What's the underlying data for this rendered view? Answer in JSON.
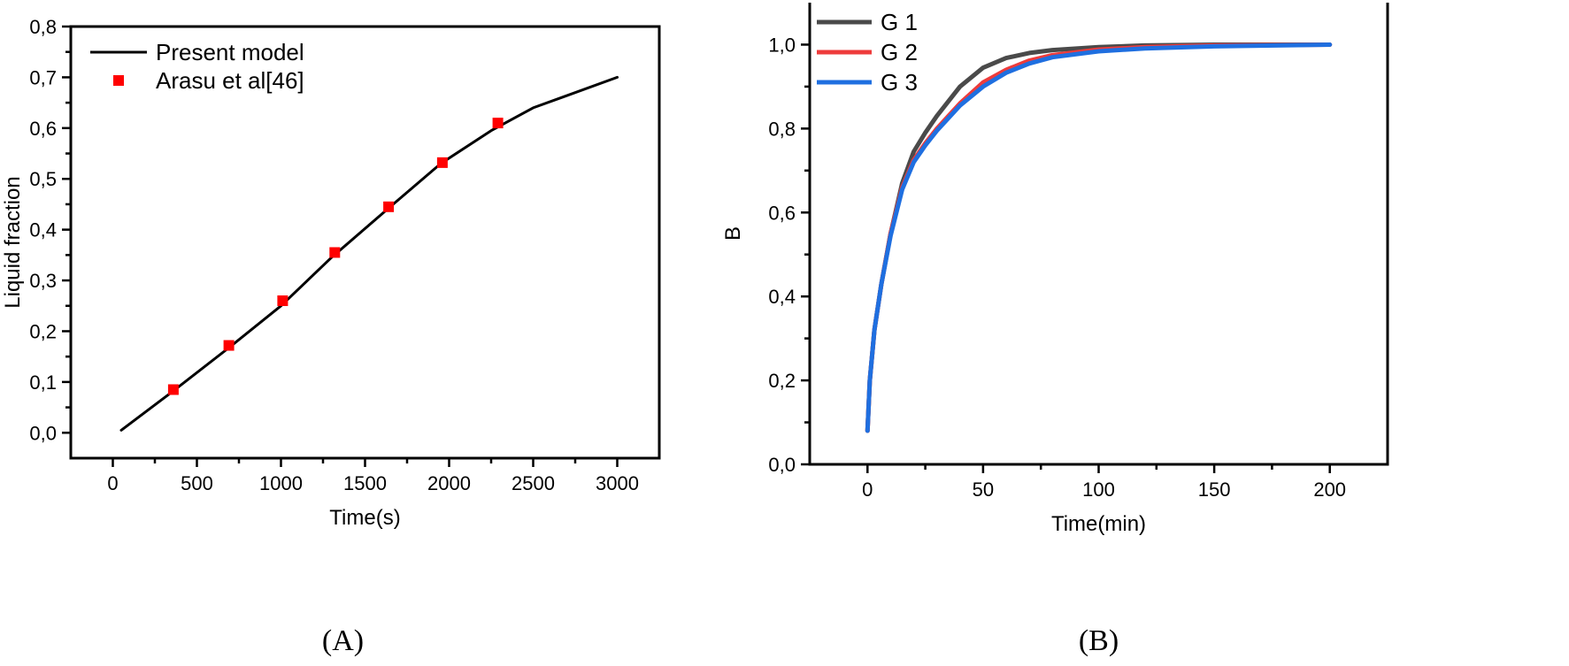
{
  "chart_data": [
    {
      "type": "line",
      "panel_label": "(A)",
      "xlabel": "Time(s)",
      "ylabel": "Liquid fraction",
      "xlim": [
        -250,
        3250
      ],
      "ylim": [
        -0.05,
        0.8
      ],
      "xticks": [
        0,
        500,
        1000,
        1500,
        2000,
        2500,
        3000
      ],
      "xtick_labels": [
        "0",
        "500",
        "1000",
        "1500",
        "2000",
        "2500",
        "3000"
      ],
      "yticks": [
        0.0,
        0.1,
        0.2,
        0.3,
        0.4,
        0.5,
        0.6,
        0.7,
        0.8
      ],
      "ytick_labels": [
        "0,0",
        "0,1",
        "0,2",
        "0,3",
        "0,4",
        "0,5",
        "0,6",
        "0,7",
        "0,8"
      ],
      "legend_position": "top-left",
      "series": [
        {
          "name": "Present model",
          "kind": "line",
          "color": "#000000",
          "x": [
            50,
            350,
            700,
            1000,
            1300,
            1650,
            1950,
            2250,
            2500,
            3000
          ],
          "y": [
            0.005,
            0.08,
            0.17,
            0.25,
            0.345,
            0.445,
            0.53,
            0.595,
            0.64,
            0.7
          ]
        },
        {
          "name": "Arasu et al[46]",
          "kind": "scatter",
          "color": "#ff0000",
          "x": [
            360,
            690,
            1010,
            1320,
            1640,
            1960,
            2290
          ],
          "y": [
            0.085,
            0.172,
            0.26,
            0.355,
            0.445,
            0.532,
            0.61
          ]
        }
      ]
    },
    {
      "type": "line",
      "panel_label": "(B)",
      "xlabel": "Time(min)",
      "ylabel": "B",
      "xlim": [
        -25,
        225
      ],
      "ylim": [
        0.0,
        1.1
      ],
      "xticks": [
        0,
        50,
        100,
        150,
        200
      ],
      "xtick_labels": [
        "0",
        "50",
        "100",
        "150",
        "200"
      ],
      "yticks": [
        0.0,
        0.2,
        0.4,
        0.6,
        0.8,
        1.0
      ],
      "ytick_labels": [
        "0,0",
        "0,2",
        "0,4",
        "0,6",
        "0,8",
        "1,0"
      ],
      "legend_position": "top-left",
      "series": [
        {
          "name": "G 1",
          "color": "#4a4a4a",
          "x": [
            0,
            1,
            3,
            6,
            10,
            15,
            20,
            25,
            30,
            40,
            50,
            60,
            70,
            80,
            100,
            120,
            150,
            200
          ],
          "y": [
            0.08,
            0.2,
            0.32,
            0.43,
            0.55,
            0.67,
            0.745,
            0.79,
            0.83,
            0.9,
            0.945,
            0.968,
            0.98,
            0.987,
            0.994,
            0.998,
            1.0,
            1.0
          ]
        },
        {
          "name": "G 2",
          "color": "#ee3b3b",
          "x": [
            0,
            1,
            3,
            6,
            10,
            15,
            20,
            25,
            30,
            40,
            50,
            60,
            70,
            80,
            100,
            120,
            150,
            200
          ],
          "y": [
            0.08,
            0.2,
            0.32,
            0.43,
            0.55,
            0.66,
            0.725,
            0.765,
            0.8,
            0.86,
            0.91,
            0.94,
            0.962,
            0.975,
            0.988,
            0.994,
            0.998,
            1.0
          ]
        },
        {
          "name": "G 3",
          "color": "#1f6fe0",
          "x": [
            0,
            1,
            3,
            6,
            10,
            15,
            20,
            25,
            30,
            40,
            50,
            60,
            70,
            80,
            100,
            120,
            150,
            200
          ],
          "y": [
            0.08,
            0.2,
            0.32,
            0.43,
            0.545,
            0.655,
            0.72,
            0.76,
            0.795,
            0.855,
            0.9,
            0.933,
            0.955,
            0.97,
            0.984,
            0.991,
            0.996,
            1.0
          ]
        }
      ]
    }
  ]
}
